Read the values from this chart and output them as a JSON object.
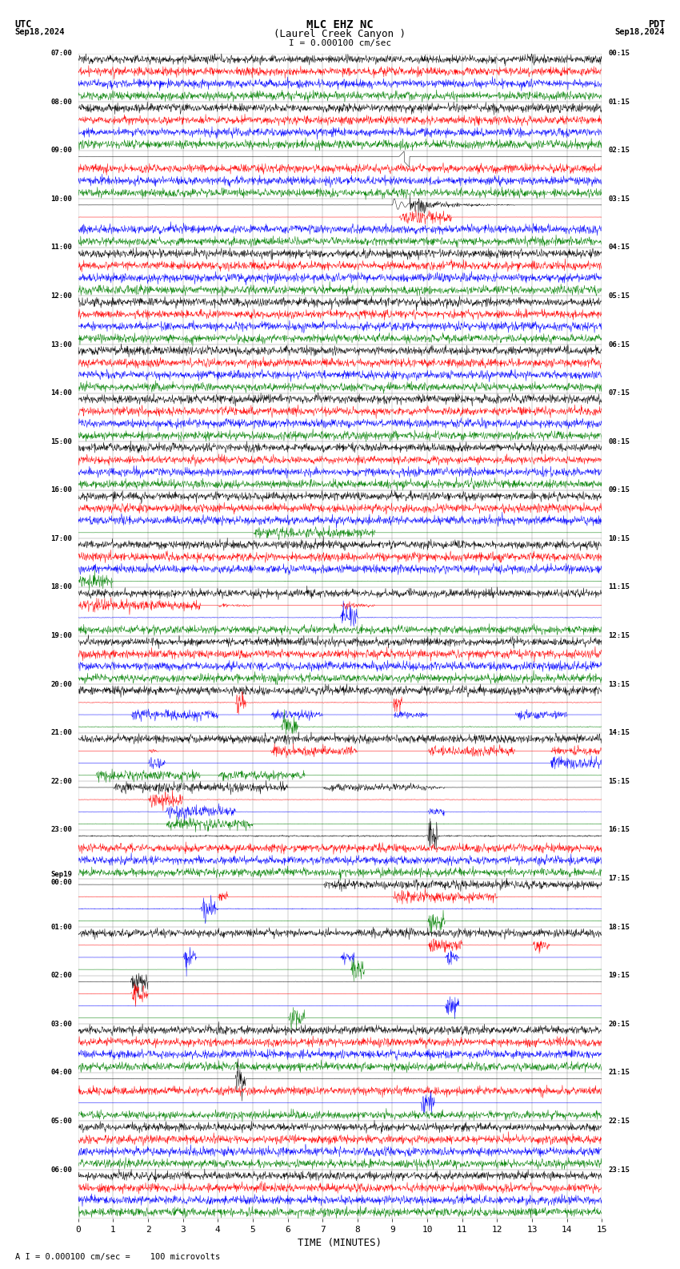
{
  "title_line1": "MLC EHZ NC",
  "title_line2": "(Laurel Creek Canyon )",
  "title_scale": "I = 0.000100 cm/sec",
  "label_utc": "UTC",
  "label_pdt": "PDT",
  "date_left": "Sep18,2024",
  "date_right": "Sep18,2024",
  "xlabel": "TIME (MINUTES)",
  "footer": "A I = 0.000100 cm/sec =    100 microvolts",
  "bg_color": "#ffffff",
  "trace_colors": [
    "black",
    "red",
    "blue",
    "green"
  ],
  "grid_color": "#aaaaaa",
  "utc_labels": [
    "07:00",
    "08:00",
    "09:00",
    "10:00",
    "11:00",
    "12:00",
    "13:00",
    "14:00",
    "15:00",
    "16:00",
    "17:00",
    "18:00",
    "19:00",
    "20:00",
    "21:00",
    "22:00",
    "23:00",
    "Sep19\n00:00",
    "01:00",
    "02:00",
    "03:00",
    "04:00",
    "05:00",
    "06:00"
  ],
  "pdt_labels": [
    "00:15",
    "01:15",
    "02:15",
    "03:15",
    "04:15",
    "05:15",
    "06:15",
    "07:15",
    "08:15",
    "09:15",
    "10:15",
    "11:15",
    "12:15",
    "13:15",
    "14:15",
    "15:15",
    "16:15",
    "17:15",
    "18:15",
    "19:15",
    "20:15",
    "21:15",
    "22:15",
    "23:15"
  ],
  "num_rows": 24,
  "traces_per_row": 4,
  "minutes_per_row": 15,
  "samples_per_minute": 100,
  "x_min": 0,
  "x_max": 15,
  "x_ticks": [
    0,
    1,
    2,
    3,
    4,
    5,
    6,
    7,
    8,
    9,
    10,
    11,
    12,
    13,
    14,
    15
  ]
}
